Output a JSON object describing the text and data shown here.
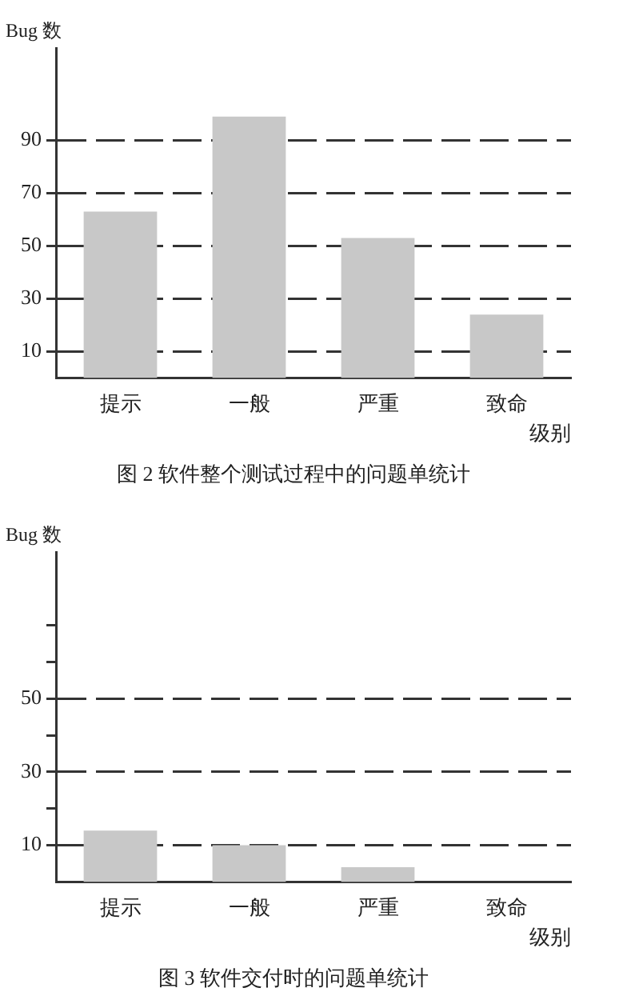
{
  "chart_data": [
    {
      "type": "bar",
      "title": "图 2 软件整个测试过程中的问题单统计",
      "ylabel": "Bug 数",
      "xlabel": "级别",
      "categories": [
        "提示",
        "一般",
        "严重",
        "致命"
      ],
      "values": [
        63,
        99,
        53,
        24
      ],
      "color": "#c8c8c8",
      "ylim": [
        0,
        125
      ],
      "yticks": [
        10,
        30,
        50,
        70,
        90
      ],
      "grid": "y",
      "line_style": "dashed"
    },
    {
      "type": "bar",
      "title": "图 3 软件交付时的问题单统计",
      "ylabel": "Bug 数",
      "xlabel": "级别",
      "categories": [
        "提示",
        "一般",
        "严重",
        "致命"
      ],
      "values": [
        14,
        10,
        4,
        0
      ],
      "color": "#c8c8c8",
      "ylim": [
        0,
        90
      ],
      "yticks": [
        10,
        {
          "value": 20,
          "label": null
        },
        30,
        {
          "value": 40,
          "label": null
        },
        50,
        {
          "value": 60,
          "label": null
        },
        {
          "value": 70,
          "label": null
        }
      ],
      "grid": "y",
      "line_style": "dashed"
    }
  ]
}
